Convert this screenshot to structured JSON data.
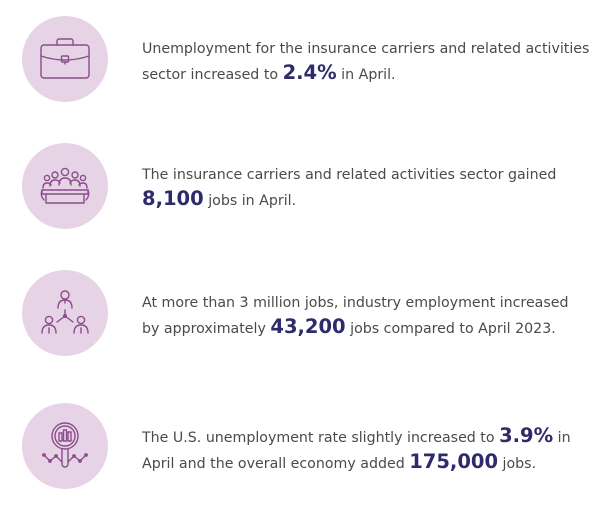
{
  "colors": {
    "icon_circle": "#e7d3e6",
    "icon_stroke": "#8a4d8c",
    "body_text": "#4a4a4a",
    "highlight_text": "#2f2a6b"
  },
  "stats": [
    {
      "icon": "briefcase-icon",
      "before": "Unemployment for the insurance carriers and related activities sector increased to ",
      "value": "2.4%",
      "after": " in April."
    },
    {
      "icon": "meeting-group-icon",
      "before": "The insurance carriers and related activities sector gained ",
      "value": "8,100",
      "after": " jobs in April."
    },
    {
      "icon": "org-network-icon",
      "before": "At more than 3 million jobs, industry employment increased by approximately ",
      "value": "43,200",
      "after": " jobs compared to April 2023."
    },
    {
      "icon": "magnifier-chart-icon",
      "before": "The U.S. unemployment rate slightly increased to ",
      "value": "3.9%",
      "middle": " in April and the overall economy added ",
      "value2": "175,000",
      "after": " jobs."
    }
  ]
}
